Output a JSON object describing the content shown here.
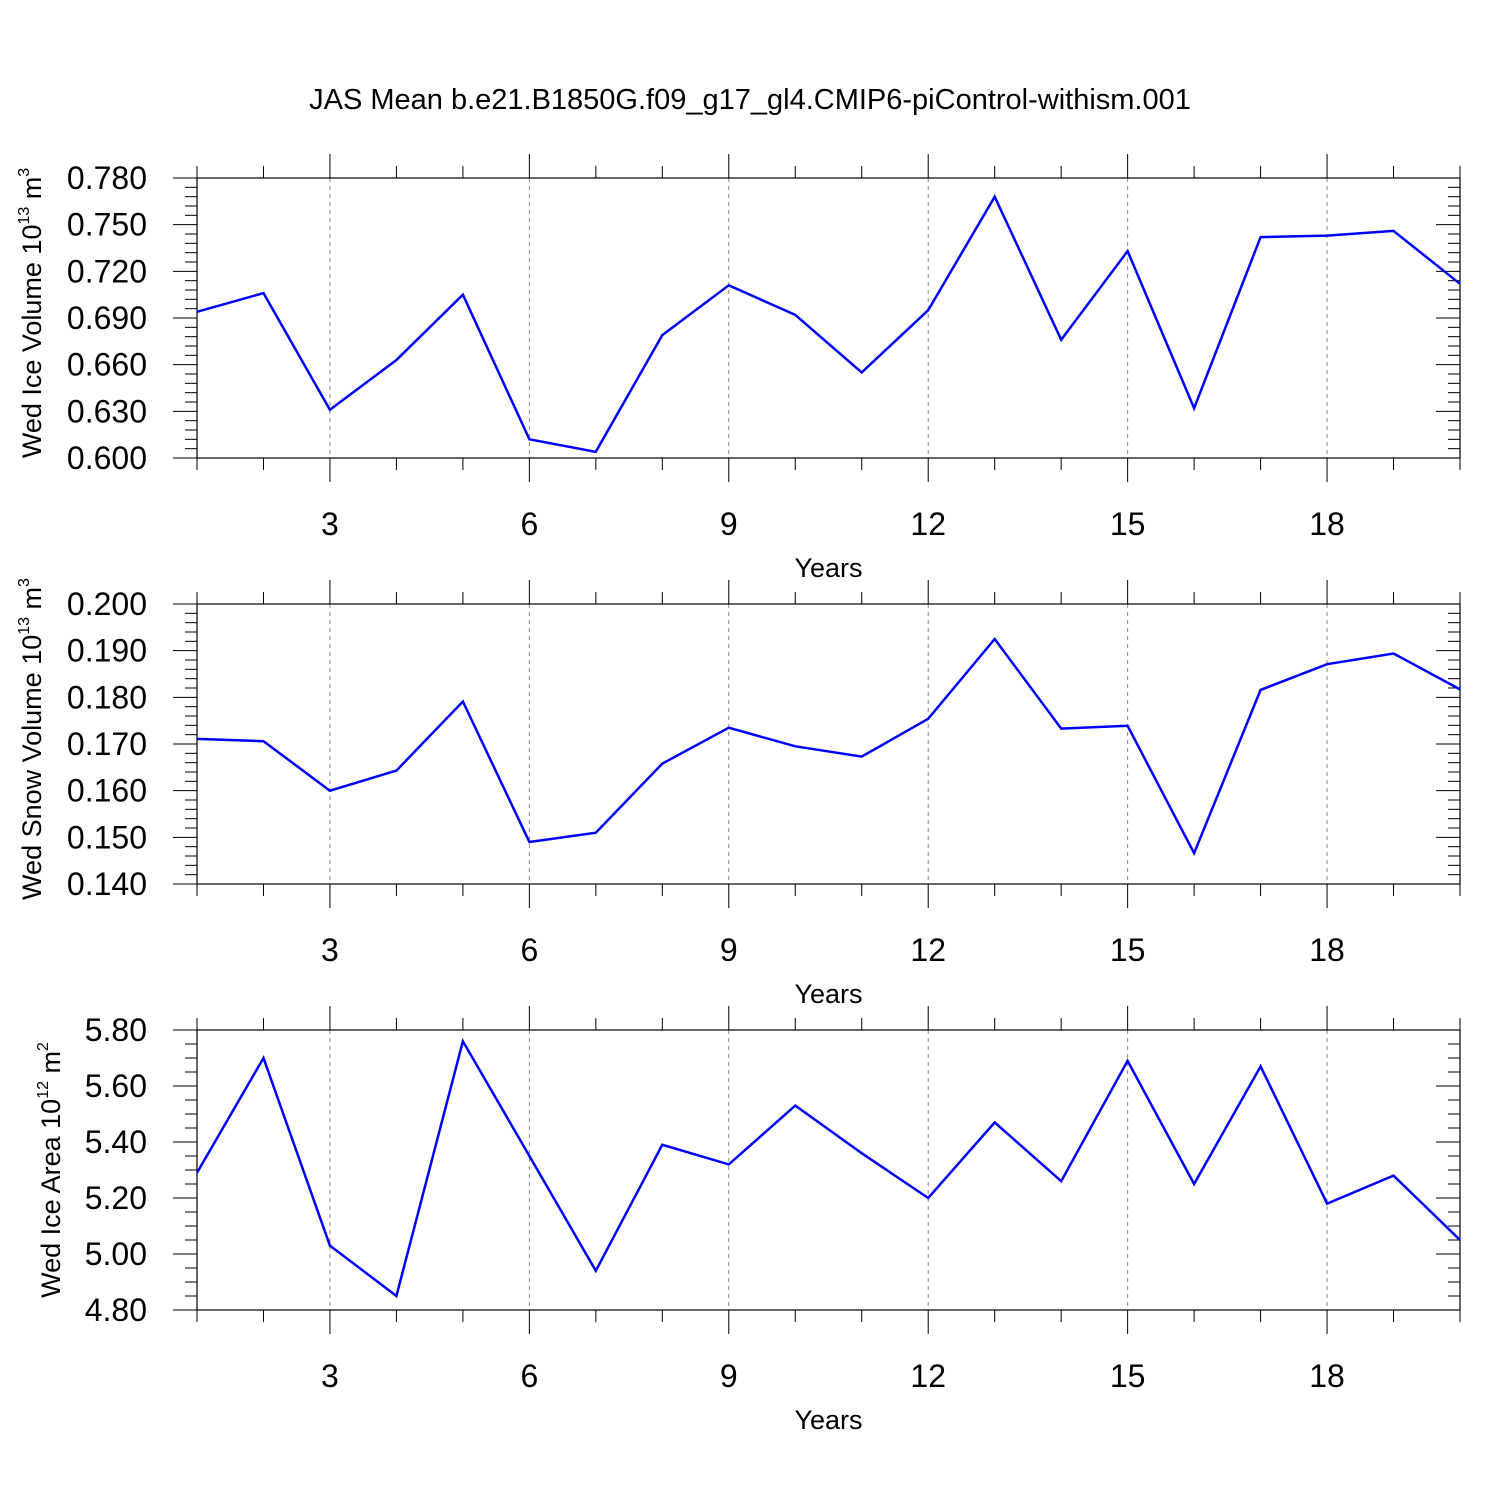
{
  "title": "JAS Mean b.e21.B1850G.f09_g17_gl4.CMIP6-piControl-withism.001",
  "chart_data": [
    {
      "type": "line",
      "title": "",
      "xlabel": "Years",
      "ylabel": "Wed Ice Volume 10",
      "ylabel_exp": "13",
      "ylabel_unit": "m",
      "ylabel_unit_exp": "3",
      "xlim": [
        1,
        20
      ],
      "ylim": [
        0.6,
        0.78
      ],
      "yticks": [
        "0.600",
        "0.630",
        "0.660",
        "0.690",
        "0.720",
        "0.750",
        "0.780"
      ],
      "xticks": [
        "3",
        "6",
        "9",
        "12",
        "15",
        "18"
      ],
      "grid": "dashed vertical at x ticks",
      "line_color": "#0000ff",
      "series": [
        {
          "x": [
            1,
            2,
            3,
            4,
            5,
            6,
            7,
            8,
            9,
            10,
            11,
            12,
            13,
            14,
            15,
            16,
            17,
            18,
            19,
            20
          ],
          "values": [
            0.694,
            0.706,
            0.631,
            0.663,
            0.705,
            0.612,
            0.604,
            0.679,
            0.711,
            0.692,
            0.655,
            0.695,
            0.768,
            0.676,
            0.733,
            0.632,
            0.742,
            0.743,
            0.746,
            0.712
          ]
        }
      ]
    },
    {
      "type": "line",
      "title": "",
      "xlabel": "Years",
      "ylabel": "Wed Snow Volume 10",
      "ylabel_exp": "13",
      "ylabel_unit": "m",
      "ylabel_unit_exp": "3",
      "xlim": [
        1,
        20
      ],
      "ylim": [
        0.14,
        0.2
      ],
      "yticks": [
        "0.140",
        "0.150",
        "0.160",
        "0.170",
        "0.180",
        "0.190",
        "0.200"
      ],
      "xticks": [
        "3",
        "6",
        "9",
        "12",
        "15",
        "18"
      ],
      "grid": "dashed vertical at x ticks",
      "line_color": "#0000ff",
      "series": [
        {
          "x": [
            1,
            2,
            3,
            4,
            5,
            6,
            7,
            8,
            9,
            10,
            11,
            12,
            13,
            14,
            15,
            16,
            17,
            18,
            19,
            20
          ],
          "values": [
            0.1711,
            0.1706,
            0.16,
            0.1643,
            0.1791,
            0.149,
            0.151,
            0.1658,
            0.1735,
            0.1695,
            0.1673,
            0.1754,
            0.1925,
            0.1733,
            0.1739,
            0.1466,
            0.1816,
            0.1871,
            0.1894,
            0.1817
          ]
        }
      ]
    },
    {
      "type": "line",
      "title": "",
      "xlabel": "Years",
      "ylabel": "Wed Ice Area 10",
      "ylabel_exp": "12",
      "ylabel_unit": "m",
      "ylabel_unit_exp": "2",
      "xlim": [
        1,
        20
      ],
      "ylim": [
        4.8,
        5.8
      ],
      "yticks": [
        "4.80",
        "5.00",
        "5.20",
        "5.40",
        "5.60",
        "5.80"
      ],
      "xticks": [
        "3",
        "6",
        "9",
        "12",
        "15",
        "18"
      ],
      "grid": "dashed vertical at x ticks",
      "line_color": "#0000ff",
      "series": [
        {
          "x": [
            1,
            2,
            3,
            4,
            5,
            6,
            7,
            8,
            9,
            10,
            11,
            12,
            13,
            14,
            15,
            16,
            17,
            18,
            19,
            20
          ],
          "values": [
            5.29,
            5.7,
            5.03,
            4.85,
            5.76,
            5.35,
            4.94,
            5.39,
            5.32,
            5.53,
            5.36,
            5.2,
            5.47,
            5.26,
            5.69,
            5.25,
            5.67,
            5.18,
            5.28,
            5.05
          ]
        }
      ]
    }
  ]
}
